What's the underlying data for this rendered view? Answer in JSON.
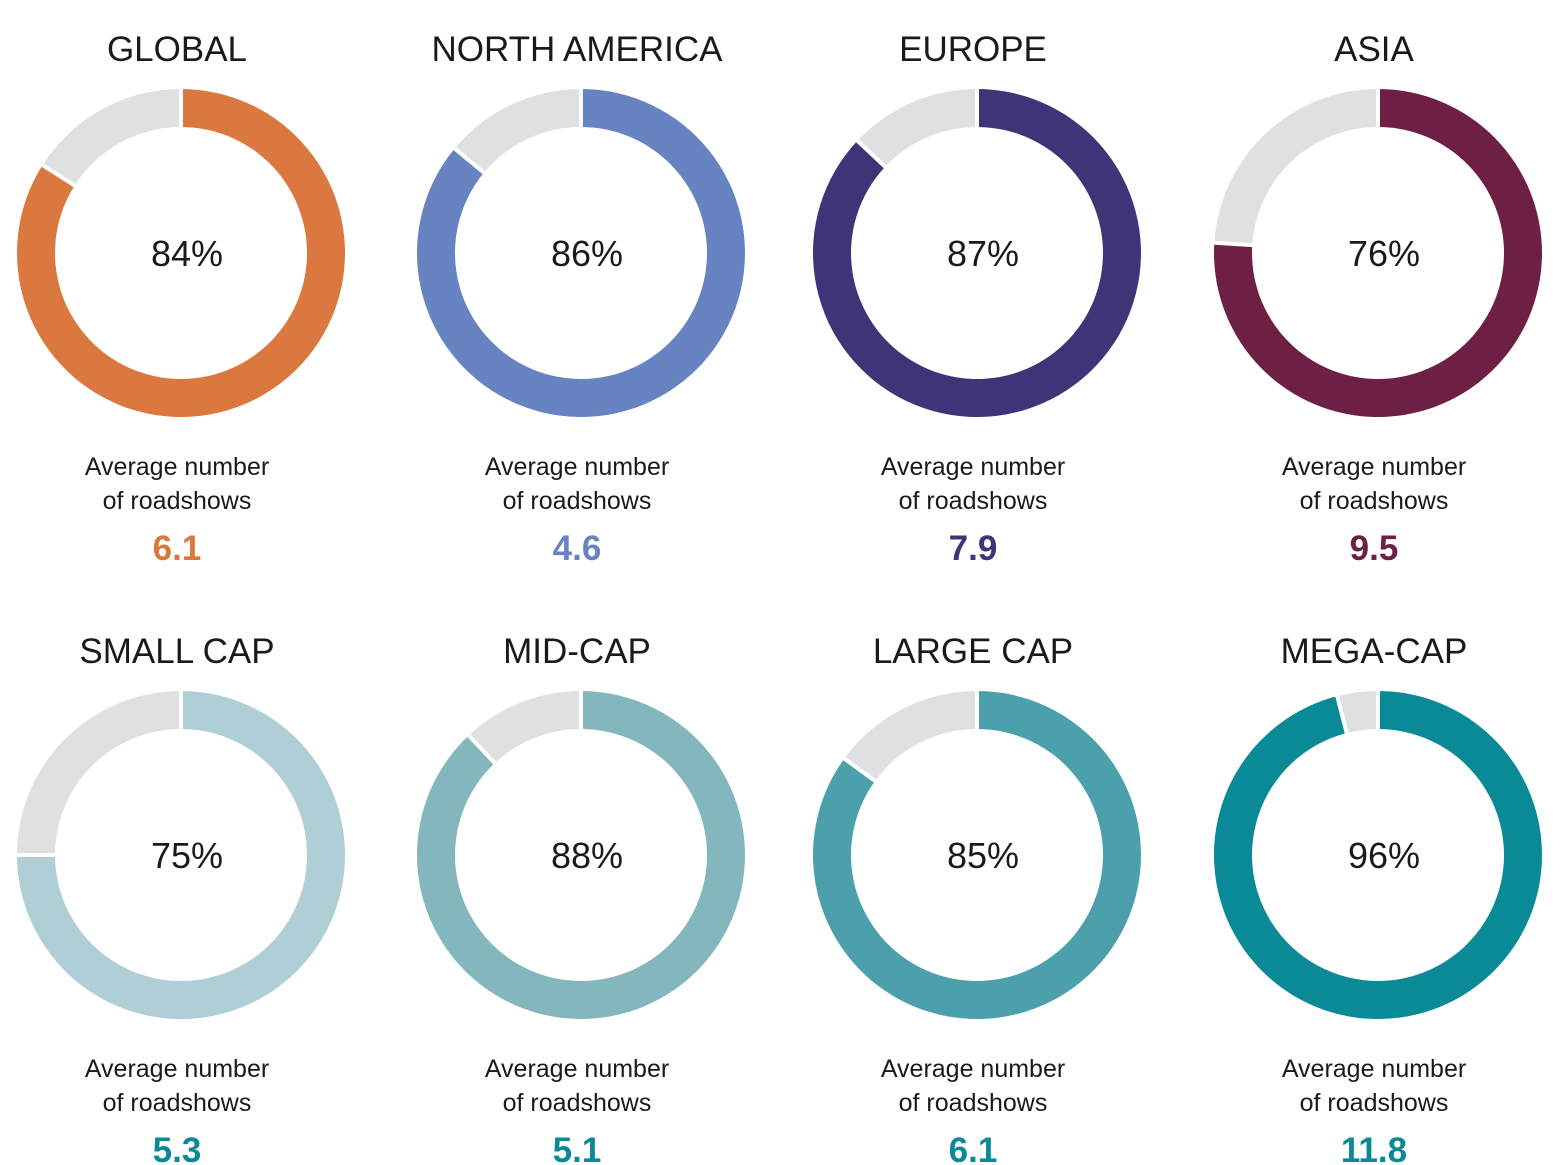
{
  "chart_data": [
    {
      "type": "pie",
      "title": "GLOBAL",
      "value_percent": 84,
      "center_label": "84%",
      "caption_line1": "Average number",
      "caption_line2": "of roadshows",
      "metric_value": "6.1",
      "color": "#DB783F",
      "remainder_color": "#DFE0E2"
    },
    {
      "type": "pie",
      "title": "NORTH AMERICA",
      "value_percent": 86,
      "center_label": "86%",
      "caption_line1": "Average number",
      "caption_line2": "of roadshows",
      "metric_value": "4.6",
      "color": "#6783C2",
      "remainder_color": "#DFE0E2"
    },
    {
      "type": "pie",
      "title": "EUROPE",
      "value_percent": 87,
      "center_label": "87%",
      "caption_line1": "Average number",
      "caption_line2": "of roadshows",
      "metric_value": "7.9",
      "color": "#3E3477",
      "remainder_color": "#DFE0E2"
    },
    {
      "type": "pie",
      "title": "ASIA",
      "value_percent": 76,
      "center_label": "76%",
      "caption_line1": "Average number",
      "caption_line2": "of roadshows",
      "metric_value": "9.5",
      "color": "#6D1F44",
      "remainder_color": "#DFE0E2"
    },
    {
      "type": "pie",
      "title": "SMALL CAP",
      "value_percent": 75,
      "center_label": "75%",
      "caption_line1": "Average number",
      "caption_line2": "of roadshows",
      "metric_value": "5.3",
      "color": "#AFCED5",
      "value_color": "#0A8A96",
      "remainder_color": "#DFE0E2"
    },
    {
      "type": "pie",
      "title": "MID-CAP",
      "value_percent": 88,
      "center_label": "88%",
      "caption_line1": "Average number",
      "caption_line2": "of roadshows",
      "metric_value": "5.1",
      "color": "#84B6BE",
      "value_color": "#0A8A96",
      "remainder_color": "#DFE0E2"
    },
    {
      "type": "pie",
      "title": "LARGE CAP",
      "value_percent": 85,
      "center_label": "85%",
      "caption_line1": "Average number",
      "caption_line2": "of roadshows",
      "metric_value": "6.1",
      "color": "#4CA0AB",
      "value_color": "#0A8A96",
      "remainder_color": "#DFE0E2"
    },
    {
      "type": "pie",
      "title": "MEGA-CAP",
      "value_percent": 96,
      "center_label": "96%",
      "caption_line1": "Average number",
      "caption_line2": "of roadshows",
      "metric_value": "11.8",
      "color": "#098A96",
      "value_color": "#0A8A96",
      "remainder_color": "#DFE0E2"
    }
  ]
}
